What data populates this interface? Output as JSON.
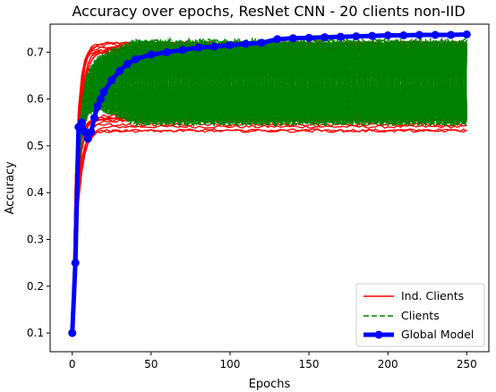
{
  "chart_data": {
    "type": "line",
    "title": "Accuracy over epochs, ResNet CNN - 20 clients non-IID",
    "xlabel": "Epochs",
    "ylabel": "Accuracy",
    "xlim": [
      -14,
      264
    ],
    "ylim": [
      0.06,
      0.76
    ],
    "x_ticks": [
      0,
      50,
      100,
      150,
      200,
      250
    ],
    "y_ticks": [
      0.1,
      0.2,
      0.3,
      0.4,
      0.5,
      0.6,
      0.7
    ],
    "grid": false,
    "legend_position": "bottom-right",
    "legend": [
      "Ind. Clients",
      "Clients",
      "Global Model"
    ],
    "colors": {
      "ind_clients": "#ff0000",
      "clients": "#008000",
      "global_model": "#0000ff"
    },
    "series": [
      {
        "name": "Global Model",
        "style": "thick line with circle markers",
        "x": [
          0,
          2,
          4,
          6,
          8,
          10,
          12,
          14,
          16,
          18,
          20,
          25,
          30,
          35,
          40,
          50,
          60,
          70,
          80,
          90,
          100,
          110,
          120,
          130,
          140,
          150,
          160,
          170,
          180,
          190,
          200,
          210,
          220,
          230,
          240,
          250
        ],
        "y": [
          0.1,
          0.25,
          0.54,
          0.55,
          0.53,
          0.515,
          0.53,
          0.56,
          0.585,
          0.6,
          0.615,
          0.64,
          0.66,
          0.675,
          0.685,
          0.695,
          0.7,
          0.705,
          0.71,
          0.712,
          0.715,
          0.718,
          0.72,
          0.728,
          0.73,
          0.731,
          0.732,
          0.733,
          0.734,
          0.735,
          0.736,
          0.736,
          0.737,
          0.737,
          0.737,
          0.738
        ]
      },
      {
        "name": "Ind. Clients",
        "style": "solid thin lines",
        "count": 20,
        "upper_band": 0.72,
        "lower_band": 0.53,
        "epochs": 250
      },
      {
        "name": "Clients",
        "style": "dashed thin lines, oscillating",
        "count": 20,
        "upper_band": 0.725,
        "lower_band": 0.545,
        "oscillation_period_epochs": 4,
        "epochs": 250
      }
    ]
  }
}
